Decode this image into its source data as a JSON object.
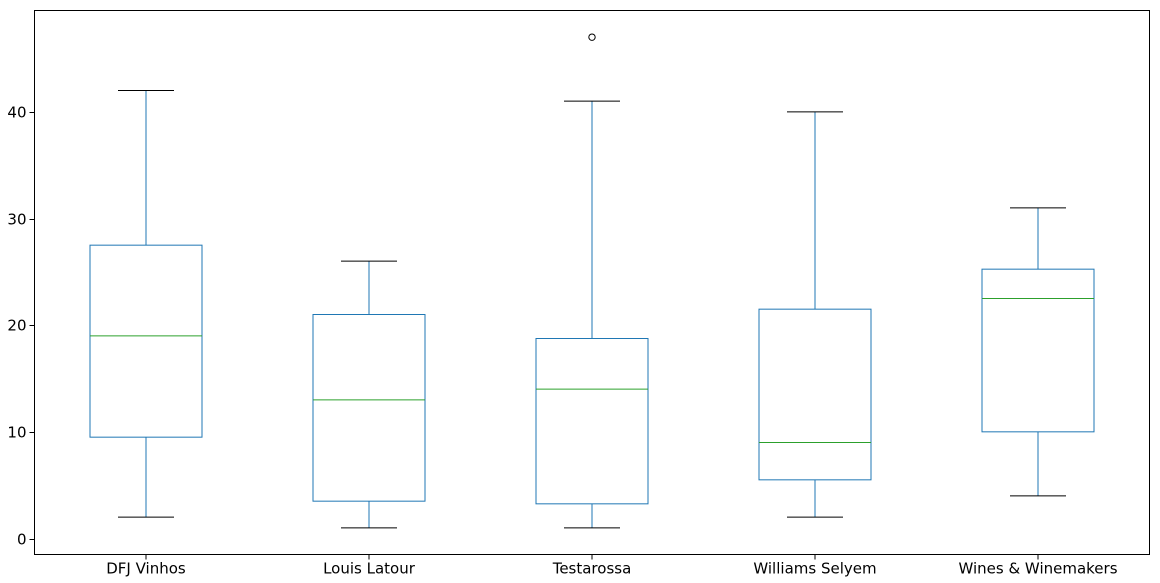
{
  "chart_data": {
    "type": "box",
    "title": "",
    "xlabel": "",
    "ylabel": "",
    "ylim": [
      -1.5,
      49.5
    ],
    "yticks": [
      0,
      10,
      20,
      30,
      40
    ],
    "grid": false,
    "colors": {
      "box": "#1f77b4",
      "median": "#2ca02c",
      "whisker": "#1f77b4",
      "cap": "#000000",
      "flier": "#000000",
      "axes": "#000000"
    },
    "categories": [
      "DFJ Vinhos",
      "Louis Latour",
      "Testarossa",
      "Williams Selyem",
      "Wines & Winemakers"
    ],
    "boxes": [
      {
        "category": "DFJ Vinhos",
        "whisker_low": 2,
        "q1": 9.5,
        "median": 19,
        "q3": 27.5,
        "whisker_high": 42,
        "outliers": []
      },
      {
        "category": "Louis Latour",
        "whisker_low": 1,
        "q1": 3.5,
        "median": 13,
        "q3": 21,
        "whisker_high": 26,
        "outliers": []
      },
      {
        "category": "Testarossa",
        "whisker_low": 1,
        "q1": 3.25,
        "median": 14,
        "q3": 18.75,
        "whisker_high": 41,
        "outliers": [
          47
        ]
      },
      {
        "category": "Williams Selyem",
        "whisker_low": 2,
        "q1": 5.5,
        "median": 9,
        "q3": 21.5,
        "whisker_high": 40,
        "outliers": []
      },
      {
        "category": "Wines & Winemakers",
        "whisker_low": 4,
        "q1": 10,
        "median": 22.5,
        "q3": 25.25,
        "whisker_high": 31,
        "outliers": []
      }
    ]
  }
}
